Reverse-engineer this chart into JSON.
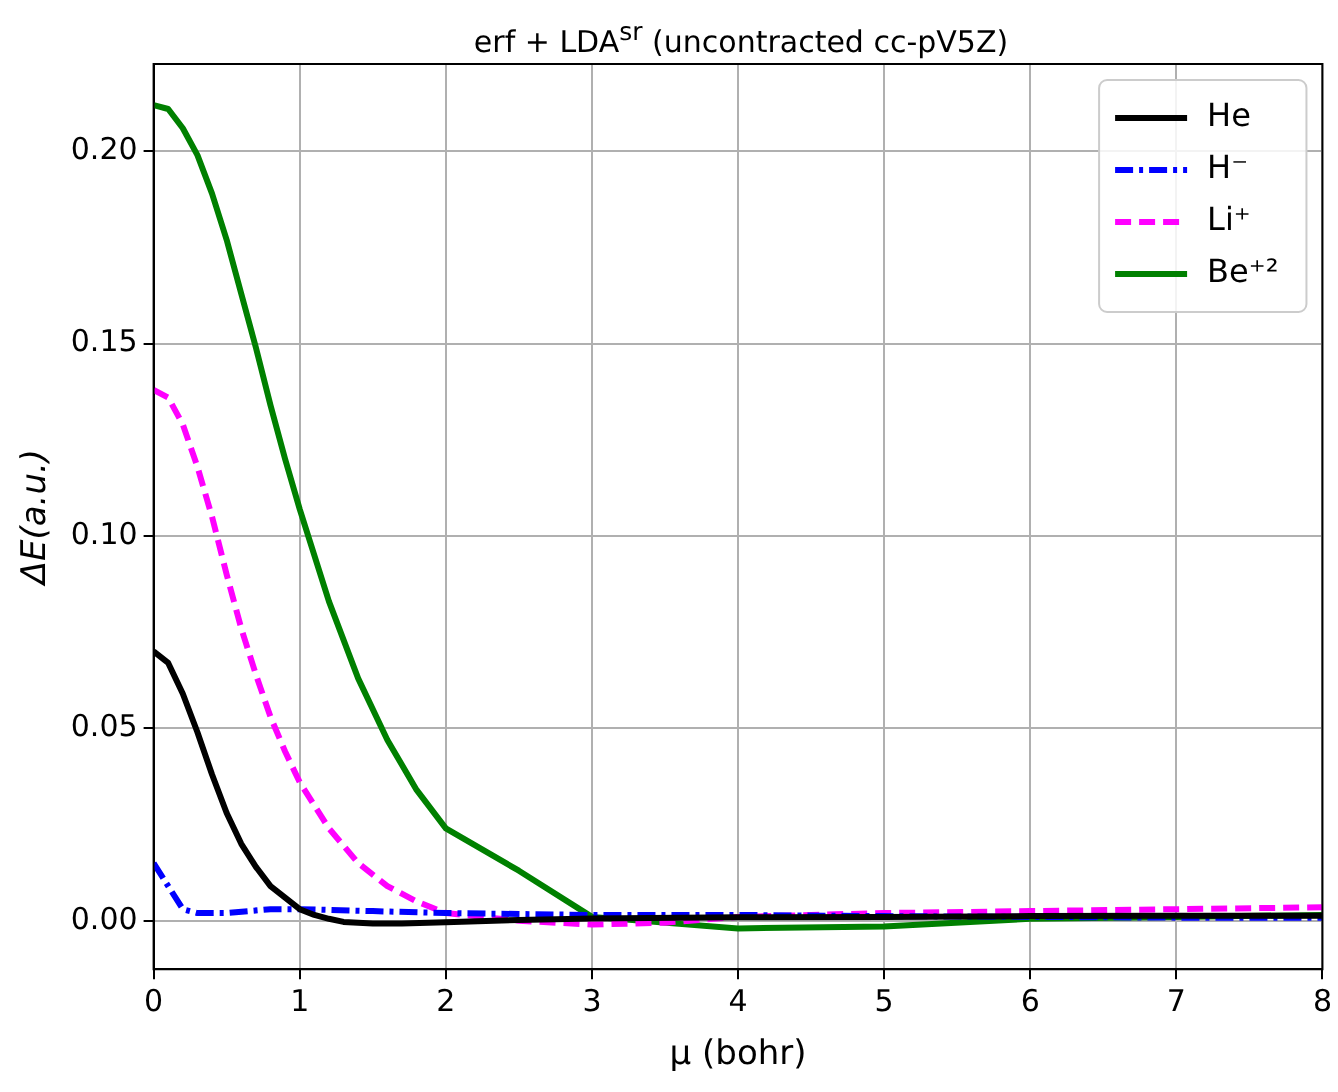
{
  "chart_data": {
    "type": "line",
    "title": "erf + LDA$^{sr}$ (uncontracted cc-pV5Z)",
    "xlabel": "μ (bohr)",
    "ylabel": "ΔE(a.u.)",
    "xlim": [
      0,
      8
    ],
    "ylim": [
      -0.0126,
      0.2227
    ],
    "xticks": [
      0,
      1,
      2,
      3,
      4,
      5,
      6,
      7,
      8
    ],
    "yticks": [
      {
        "value": 0,
        "label": "0.00"
      },
      {
        "value": 0.05,
        "label": "0.05"
      },
      {
        "value": 0.1,
        "label": "0.10"
      },
      {
        "value": 0.15,
        "label": "0.15"
      },
      {
        "value": 0.2,
        "label": "0.20"
      }
    ],
    "grid": true,
    "legend": "top right",
    "marker": "none",
    "series": [
      {
        "name": "He",
        "color": "#000000",
        "line_style": "solid",
        "x": [
          0,
          0.1,
          0.2,
          0.3,
          0.4,
          0.5,
          0.6,
          0.7,
          0.8,
          0.9,
          1.0,
          1.1,
          1.2,
          1.3,
          1.5,
          1.7,
          2,
          2.5,
          3,
          4,
          5,
          6,
          7,
          8
        ],
        "values": [
          0.07,
          0.067,
          0.059,
          0.049,
          0.038,
          0.028,
          0.02,
          0.014,
          0.009,
          0.006,
          0.003,
          0.0015,
          0.0005,
          -0.0003,
          -0.0007,
          -0.0007,
          -0.0004,
          0.0002,
          0.0006,
          0.0009,
          0.001,
          0.0012,
          0.0013,
          0.0013
        ]
      },
      {
        "name": "H⁻",
        "color": "#0000ff",
        "line_style": "dashdot",
        "x": [
          0,
          0.1,
          0.2,
          0.3,
          0.5,
          0.8,
          1.0,
          1.5,
          2,
          3,
          4,
          5,
          6,
          7,
          8
        ],
        "values": [
          0.015,
          0.009,
          0.003,
          0.002,
          0.002,
          0.003,
          0.003,
          0.0025,
          0.002,
          0.0015,
          0.0015,
          0.0012,
          0.001,
          0.0008,
          0.0008
        ]
      },
      {
        "name": "Li⁺",
        "color": "#ff00ff",
        "line_style": "dashed",
        "x": [
          0,
          0.1,
          0.2,
          0.3,
          0.4,
          0.5,
          0.6,
          0.7,
          0.8,
          0.9,
          1.0,
          1.2,
          1.4,
          1.6,
          1.8,
          2.0,
          2.5,
          3,
          3.5,
          4,
          5,
          6,
          7,
          8
        ],
        "values": [
          0.138,
          0.136,
          0.129,
          0.118,
          0.105,
          0.09,
          0.076,
          0.064,
          0.053,
          0.044,
          0.036,
          0.024,
          0.015,
          0.009,
          0.005,
          0.002,
          0.0,
          -0.001,
          -0.0005,
          0.001,
          0.002,
          0.0025,
          0.003,
          0.0035
        ]
      },
      {
        "name": "Be⁺²",
        "color": "#008000",
        "line_style": "solid",
        "x": [
          0,
          0.1,
          0.2,
          0.3,
          0.4,
          0.5,
          0.6,
          0.7,
          0.8,
          0.9,
          1.0,
          1.2,
          1.4,
          1.6,
          1.8,
          2.0,
          2.5,
          3,
          4,
          5,
          6,
          7,
          8
        ],
        "values": [
          0.212,
          0.211,
          0.206,
          0.199,
          0.189,
          0.177,
          0.163,
          0.149,
          0.134,
          0.12,
          0.107,
          0.083,
          0.063,
          0.047,
          0.034,
          0.024,
          0.013,
          0.001,
          -0.002,
          -0.0015,
          0.0005,
          0.001,
          0.0015
        ]
      }
    ]
  }
}
